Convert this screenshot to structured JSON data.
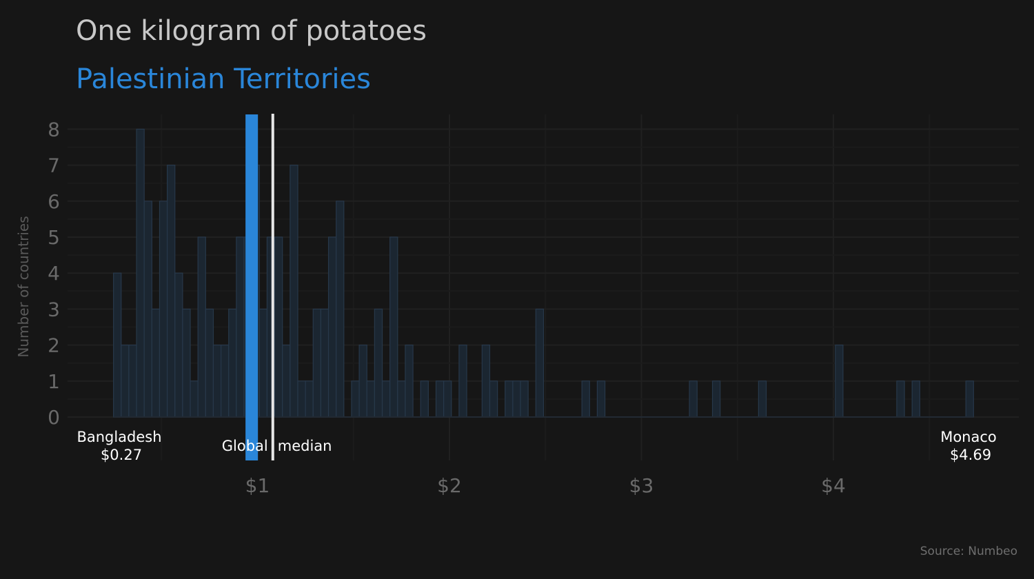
{
  "chart_data": {
    "type": "bar",
    "title": "One kilogram of potatoes",
    "subtitle": "Palestinian Territories",
    "ylabel": "Number of countries",
    "xlabel": "",
    "source": "Source: Numbeo",
    "x_ticks": [
      {
        "value": 1,
        "label": "$1"
      },
      {
        "value": 2,
        "label": "$2"
      },
      {
        "value": 3,
        "label": "$3"
      },
      {
        "value": 4,
        "label": "$4"
      }
    ],
    "y_ticks": [
      0,
      1,
      2,
      3,
      4,
      5,
      6,
      7,
      8
    ],
    "ylim": [
      0,
      8.4
    ],
    "xlim": [
      0.05,
      4.85
    ],
    "grid": true,
    "bin_width": 0.04,
    "bins": [
      {
        "x": 0.27,
        "count": 4
      },
      {
        "x": 0.31,
        "count": 2
      },
      {
        "x": 0.35,
        "count": 2
      },
      {
        "x": 0.39,
        "count": 8
      },
      {
        "x": 0.43,
        "count": 6
      },
      {
        "x": 0.47,
        "count": 3
      },
      {
        "x": 0.51,
        "count": 6
      },
      {
        "x": 0.55,
        "count": 7
      },
      {
        "x": 0.59,
        "count": 4
      },
      {
        "x": 0.63,
        "count": 3
      },
      {
        "x": 0.67,
        "count": 1
      },
      {
        "x": 0.71,
        "count": 5
      },
      {
        "x": 0.75,
        "count": 3
      },
      {
        "x": 0.79,
        "count": 2
      },
      {
        "x": 0.83,
        "count": 2
      },
      {
        "x": 0.87,
        "count": 3
      },
      {
        "x": 0.91,
        "count": 5
      },
      {
        "x": 0.95,
        "count": 5
      },
      {
        "x": 0.99,
        "count": 7
      },
      {
        "x": 1.03,
        "count": 3
      },
      {
        "x": 1.07,
        "count": 5
      },
      {
        "x": 1.11,
        "count": 5
      },
      {
        "x": 1.15,
        "count": 2
      },
      {
        "x": 1.19,
        "count": 7
      },
      {
        "x": 1.23,
        "count": 1
      },
      {
        "x": 1.27,
        "count": 1
      },
      {
        "x": 1.31,
        "count": 3
      },
      {
        "x": 1.35,
        "count": 3
      },
      {
        "x": 1.39,
        "count": 5
      },
      {
        "x": 1.43,
        "count": 6
      },
      {
        "x": 1.51,
        "count": 1
      },
      {
        "x": 1.55,
        "count": 2
      },
      {
        "x": 1.59,
        "count": 1
      },
      {
        "x": 1.63,
        "count": 3
      },
      {
        "x": 1.67,
        "count": 1
      },
      {
        "x": 1.71,
        "count": 5
      },
      {
        "x": 1.75,
        "count": 1
      },
      {
        "x": 1.79,
        "count": 2
      },
      {
        "x": 1.87,
        "count": 1
      },
      {
        "x": 1.95,
        "count": 1
      },
      {
        "x": 1.99,
        "count": 1
      },
      {
        "x": 2.07,
        "count": 2
      },
      {
        "x": 2.19,
        "count": 2
      },
      {
        "x": 2.23,
        "count": 1
      },
      {
        "x": 2.31,
        "count": 1
      },
      {
        "x": 2.35,
        "count": 1
      },
      {
        "x": 2.39,
        "count": 1
      },
      {
        "x": 2.47,
        "count": 3
      },
      {
        "x": 2.71,
        "count": 1
      },
      {
        "x": 2.79,
        "count": 1
      },
      {
        "x": 3.27,
        "count": 1
      },
      {
        "x": 3.39,
        "count": 1
      },
      {
        "x": 3.63,
        "count": 1
      },
      {
        "x": 4.03,
        "count": 2
      },
      {
        "x": 4.35,
        "count": 1
      },
      {
        "x": 4.43,
        "count": 1
      },
      {
        "x": 4.71,
        "count": 1
      }
    ],
    "highlight": {
      "name": "Palestinian Territories",
      "value": 0.97
    },
    "median": {
      "label_left": "Global",
      "label_right": "median",
      "value": 1.08
    },
    "min_country": {
      "name": "Bangladesh",
      "value_label": "$0.27",
      "value": 0.27
    },
    "max_country": {
      "name": "Monaco",
      "value_label": "$4.69",
      "value": 4.69
    },
    "colors": {
      "background": "#161616",
      "bar_fill": "#1b2631",
      "bar_stroke": "#27384a",
      "highlight": "#2a86d9",
      "median_line": "#e6e6e6",
      "grid": "#1f1f1f"
    }
  }
}
